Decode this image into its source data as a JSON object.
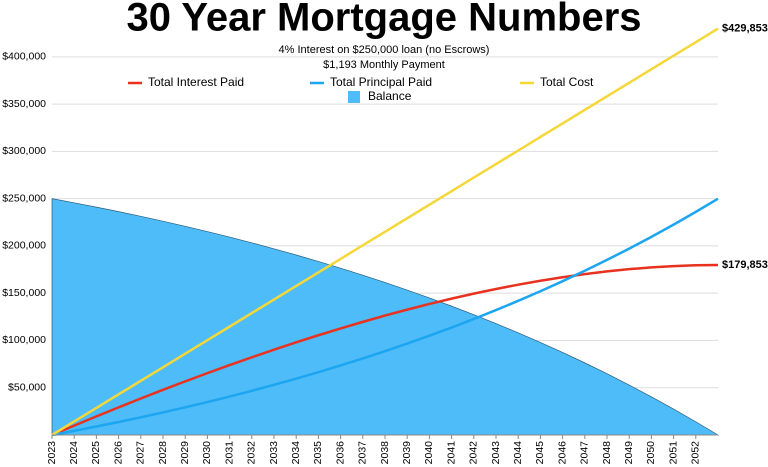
{
  "chart_data": {
    "type": "line",
    "title": "30 Year Mortgage Numbers",
    "subtitle": [
      "4% Interest on $250,000 loan (no Escrows)",
      "$1,193 Monthly Payment"
    ],
    "x": [
      2023,
      2024,
      2025,
      2026,
      2027,
      2028,
      2029,
      2030,
      2031,
      2032,
      2033,
      2034,
      2035,
      2036,
      2037,
      2038,
      2039,
      2040,
      2041,
      2042,
      2043,
      2044,
      2045,
      2046,
      2047,
      2048,
      2049,
      2050,
      2051,
      2052,
      2053
    ],
    "xlim": [
      2023,
      2053
    ],
    "xticks": [
      2023,
      2024,
      2025,
      2026,
      2027,
      2028,
      2029,
      2030,
      2031,
      2032,
      2033,
      2034,
      2035,
      2036,
      2037,
      2038,
      2039,
      2040,
      2041,
      2042,
      2043,
      2044,
      2045,
      2046,
      2047,
      2048,
      2049,
      2050,
      2051,
      2052
    ],
    "ylim": [
      0,
      440000
    ],
    "yticks": [
      {
        "value": 50000,
        "label": "$50,000"
      },
      {
        "value": 100000,
        "label": "$100,000"
      },
      {
        "value": 150000,
        "label": "$150,000"
      },
      {
        "value": 200000,
        "label": "$200,000"
      },
      {
        "value": 250000,
        "label": "$250,000"
      },
      {
        "value": 300000,
        "label": "$300,000"
      },
      {
        "value": 350000,
        "label": "$350,000"
      },
      {
        "value": 400000,
        "label": "$400,000"
      }
    ],
    "grid": true,
    "series": [
      {
        "name": "Balance",
        "color": "#4dbcf8",
        "area": true,
        "values": [
          250000,
          245597,
          241015,
          236246,
          231283,
          226118,
          220742,
          215147,
          209325,
          203265,
          196958,
          190395,
          183564,
          176455,
          169056,
          161356,
          153342,
          145001,
          136321,
          127287,
          117884,
          108099,
          97915,
          87316,
          76286,
          64805,
          52858,
          40423,
          27482,
          14013,
          0
        ]
      },
      {
        "name": "Total Interest Paid",
        "color": "#e8321f",
        "values": [
          0,
          9925,
          19672,
          29231,
          38597,
          47760,
          56713,
          65446,
          73952,
          82221,
          90242,
          98008,
          105505,
          112725,
          119654,
          126282,
          132597,
          138584,
          144233,
          149527,
          154453,
          158996,
          163140,
          166870,
          170168,
          173016,
          175397,
          177291,
          178678,
          179537,
          179853
        ],
        "value_labels": [
          null,
          null,
          null,
          null,
          null,
          null,
          null,
          null,
          null,
          null,
          null,
          null,
          null,
          null,
          null,
          null,
          null,
          null,
          null,
          null,
          null,
          null,
          null,
          null,
          null,
          null,
          null,
          null,
          null,
          null,
          "$179,853"
        ]
      },
      {
        "name": "Total Principal Paid",
        "color": "#1ca5f0",
        "values": [
          0,
          4403,
          8985,
          13754,
          18717,
          23882,
          29258,
          34853,
          40675,
          46735,
          53042,
          59605,
          66436,
          73545,
          80944,
          88644,
          96658,
          104999,
          113679,
          122713,
          132116,
          141901,
          152085,
          162684,
          173714,
          185195,
          197142,
          209577,
          222518,
          235987,
          250000
        ]
      },
      {
        "name": "Total Cost",
        "color": "#f5d73a",
        "values": [
          0,
          14328,
          28657,
          42985,
          57314,
          71642,
          85971,
          100299,
          114627,
          128956,
          143284,
          157613,
          171941,
          186270,
          200598,
          214926,
          229255,
          243583,
          257912,
          272240,
          286569,
          300897,
          315225,
          329554,
          343882,
          358211,
          372539,
          386868,
          401196,
          415524,
          429853
        ],
        "value_labels": [
          null,
          null,
          null,
          null,
          null,
          null,
          null,
          null,
          null,
          null,
          null,
          null,
          null,
          null,
          null,
          null,
          null,
          null,
          null,
          null,
          null,
          null,
          null,
          null,
          null,
          null,
          null,
          null,
          null,
          null,
          "$429,853"
        ]
      }
    ]
  }
}
